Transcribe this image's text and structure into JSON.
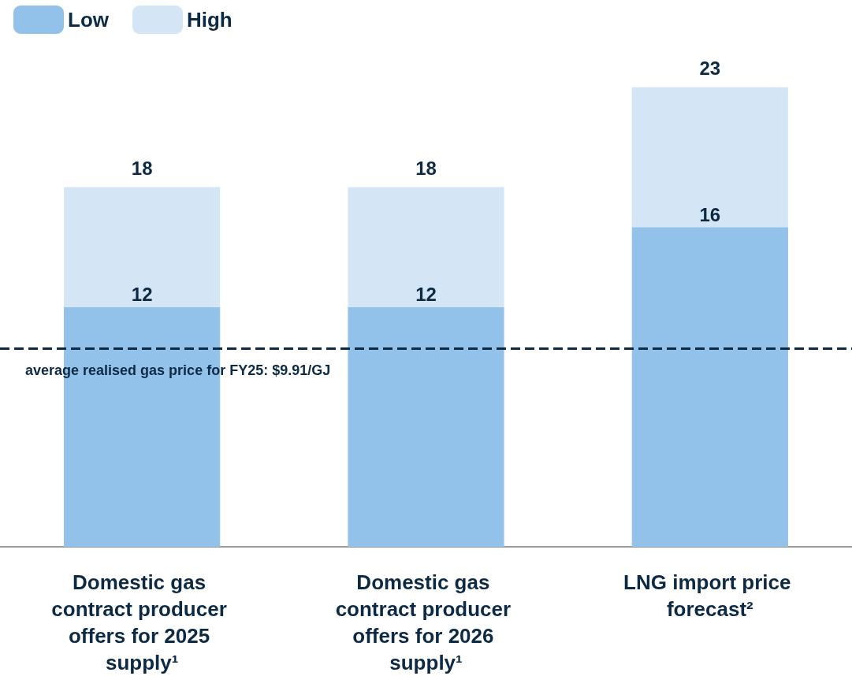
{
  "chart_data": {
    "type": "bar",
    "stacked": true,
    "categories": [
      "Domestic gas contract producer offers for 2025 supply¹",
      "Domestic gas contract producer offers for 2026 supply¹",
      "LNG import price forecast²"
    ],
    "series": [
      {
        "name": "Low",
        "color": "#92c1e9",
        "values": [
          12,
          12,
          16
        ],
        "value_labels": [
          "12",
          "12",
          "16"
        ]
      },
      {
        "name": "High",
        "color": "#d4e6f5",
        "values": [
          6,
          6,
          7
        ]
      }
    ],
    "totals": [
      "18",
      "18",
      "23"
    ],
    "tick_labels": "x",
    "legend": "top left",
    "ref_lines": [
      {
        "axis": "y",
        "value": 9.91,
        "label": "average realised gas price for FY25: $9.91/GJ",
        "color": "#0d2a45",
        "line_style": "dashed"
      }
    ]
  }
}
